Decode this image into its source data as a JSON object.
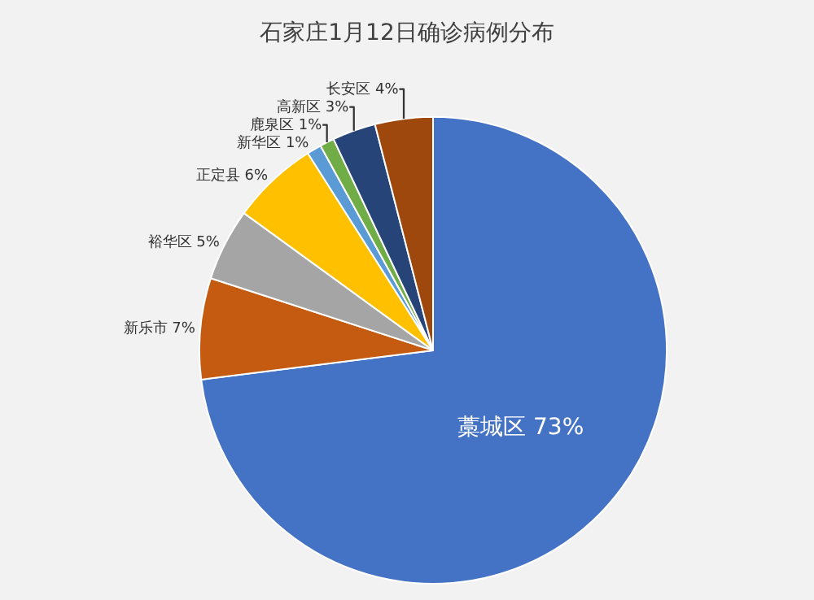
{
  "chart_data": {
    "type": "pie",
    "title": "石家庄1月12日确诊病例分布",
    "categories": [
      "藁城区",
      "新乐市",
      "裕华区",
      "正定县",
      "新华区",
      "鹿泉区",
      "高新区",
      "长安区"
    ],
    "values": [
      73,
      7,
      5,
      6,
      1,
      1,
      3,
      4
    ],
    "colors": [
      "#4472c4",
      "#c55a11",
      "#a5a5a5",
      "#ffc000",
      "#5b9bd5",
      "#70ad47",
      "#264478",
      "#9e480e"
    ],
    "value_labels": [
      "73%",
      "7%",
      "5%",
      "6%",
      "1%",
      "1%",
      "3%",
      "4%"
    ],
    "legend": false
  }
}
